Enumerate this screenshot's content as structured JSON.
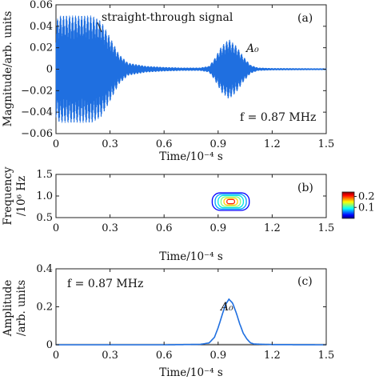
{
  "figure": {
    "panel_a": {
      "panel_label": "(a)",
      "ylabel": "Magnitude/arb. units",
      "xlabel": "Time/10⁻⁴ s",
      "annotation_signal": "straight-through signal",
      "annotation_mode": "A₀",
      "annotation_freq": "f = 0.87 MHz",
      "xticks": [
        "0",
        "0.3",
        "0.6",
        "0.9",
        "1.2",
        "1.5"
      ],
      "yticks": [
        "0.06",
        "0.04",
        "0.02",
        "0",
        "−0.02",
        "−0.04",
        "−0.06"
      ]
    },
    "panel_b": {
      "panel_label": "(b)",
      "ylabel_line1": "Frequency",
      "ylabel_line2": "/10⁶ Hz",
      "xlabel": "Time/10⁻⁴ s",
      "xticks": [
        "0",
        "0.3",
        "0.6",
        "0.9",
        "1.2",
        "1.5"
      ],
      "yticks": [
        "1.5",
        "1.0",
        "0.5"
      ],
      "colorbar_ticks": [
        "0.2",
        "0.1"
      ]
    },
    "panel_c": {
      "panel_label": "(c)",
      "ylabel_line1": "Amplitude",
      "ylabel_line2": "/arb. units",
      "xlabel": "Time/10⁻⁴ s",
      "annotation_freq": "f = 0.87 MHz",
      "annotation_mode": "A₀",
      "xticks": [
        "0",
        "0.3",
        "0.6",
        "0.9",
        "1.2",
        "1.5"
      ],
      "yticks": [
        "0.4",
        "0.2",
        "0"
      ]
    }
  },
  "chart_data": [
    {
      "type": "line",
      "panel": "(a)",
      "xlabel": "Time/10⁻⁴ s",
      "ylabel": "Magnitude/arb. units",
      "xlim": [
        0,
        1.5
      ],
      "ylim": [
        -0.06,
        0.06
      ],
      "series_color": "#1f6fe0",
      "carrier_frequency_MHz": 0.87,
      "envelope": {
        "x": [
          0,
          0.02,
          0.2,
          0.25,
          0.3,
          0.35,
          0.4,
          0.5,
          0.6,
          0.7,
          0.8,
          0.85,
          0.88,
          0.92,
          0.96,
          1.0,
          1.04,
          1.08,
          1.12,
          1.2,
          1.5
        ],
        "amplitude": [
          0.045,
          0.05,
          0.05,
          0.045,
          0.03,
          0.014,
          0.006,
          0.003,
          0.002,
          0.0015,
          0.0015,
          0.003,
          0.01,
          0.022,
          0.028,
          0.022,
          0.012,
          0.004,
          0.0015,
          0.001,
          0.0008
        ]
      }
    },
    {
      "type": "heatmap",
      "panel": "(b)",
      "xlabel": "Time/10⁻⁴ s",
      "ylabel": "Frequency/10⁶ Hz",
      "xlim": [
        0,
        1.5
      ],
      "ylim": [
        0.5,
        1.5
      ],
      "peak": {
        "x": 0.97,
        "y": 0.87,
        "value": 0.24
      },
      "contour_levels": [
        0.02,
        0.06,
        0.1,
        0.14,
        0.18,
        0.22
      ],
      "colorbar_range": [
        0,
        0.24
      ]
    },
    {
      "type": "line",
      "panel": "(c)",
      "xlabel": "Time/10⁻⁴ s",
      "ylabel": "Amplitude/arb. units",
      "xlim": [
        0,
        1.5
      ],
      "ylim": [
        0,
        0.4
      ],
      "series_color": "#1f6fe0",
      "x": [
        0,
        0.3,
        0.6,
        0.8,
        0.85,
        0.88,
        0.9,
        0.92,
        0.94,
        0.96,
        0.98,
        1.0,
        1.02,
        1.04,
        1.06,
        1.08,
        1.1,
        1.2,
        1.5
      ],
      "y": [
        0,
        0,
        0,
        0.002,
        0.01,
        0.04,
        0.09,
        0.15,
        0.21,
        0.24,
        0.22,
        0.17,
        0.11,
        0.06,
        0.03,
        0.01,
        0.004,
        0.001,
        0
      ]
    }
  ]
}
